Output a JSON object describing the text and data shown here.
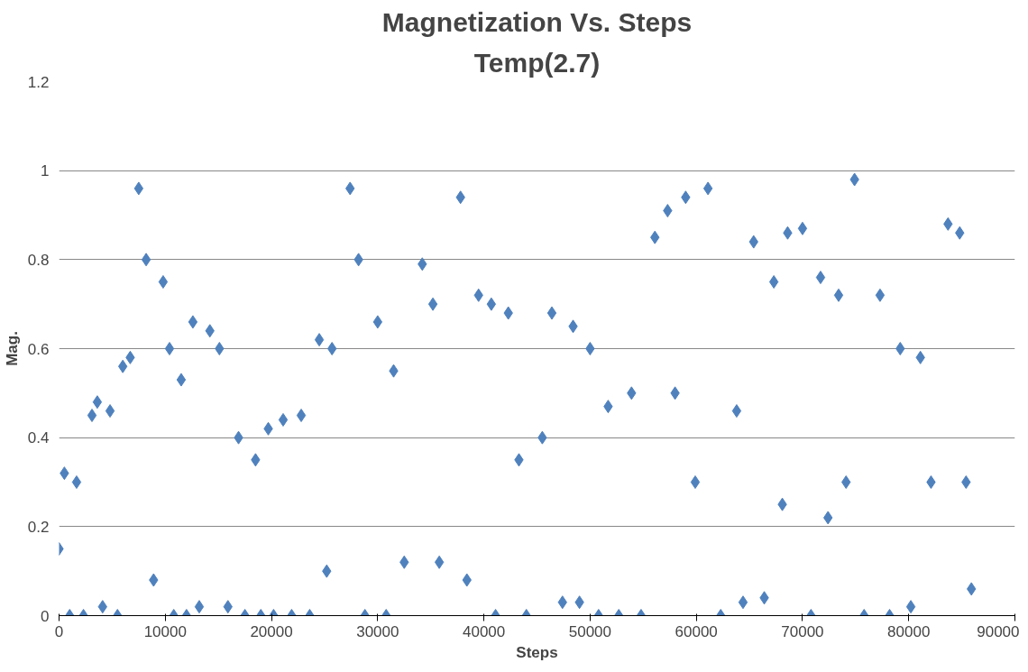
{
  "chart_data": {
    "type": "scatter",
    "title": "Magnetization Vs. Steps",
    "subtitle": "Temp(2.7)",
    "xlabel": "Steps",
    "ylabel": "Mag.",
    "x": [
      0,
      500,
      1000,
      1650,
      2300,
      3100,
      3600,
      4100,
      4800,
      5500,
      6000,
      6700,
      7500,
      8200,
      8900,
      9800,
      10400,
      10800,
      11500,
      12000,
      12600,
      13200,
      14200,
      15100,
      15900,
      16900,
      17500,
      18500,
      19000,
      19700,
      20200,
      21100,
      21900,
      22800,
      23600,
      24500,
      25200,
      25700,
      27400,
      28200,
      28800,
      30000,
      30800,
      31500,
      32500,
      34200,
      35200,
      35800,
      37800,
      38400,
      39500,
      40700,
      41100,
      42300,
      43300,
      44000,
      45500,
      46400,
      47400,
      48400,
      49000,
      50000,
      50800,
      51700,
      52700,
      53900,
      54800,
      56100,
      57300,
      58000,
      59000,
      59900,
      61100,
      62300,
      63800,
      64400,
      65400,
      66400,
      67300,
      68100,
      68600,
      70000,
      70800,
      71700,
      72400,
      73400,
      74100,
      74900,
      75800,
      77300,
      78200,
      79200,
      80200,
      81100,
      82100,
      83700,
      84800,
      85400,
      85900
    ],
    "values": [
      0.15,
      0.32,
      0,
      0.3,
      0,
      0.45,
      0.48,
      0.02,
      0.46,
      0,
      0.56,
      0.58,
      0.96,
      0.8,
      0.08,
      0.75,
      0.6,
      0,
      0.53,
      0,
      0.66,
      0.02,
      0.64,
      0.6,
      0.02,
      0.4,
      0,
      0.35,
      0,
      0.42,
      0,
      0.44,
      0,
      0.45,
      0,
      0.62,
      0.1,
      0.6,
      0.96,
      0.8,
      0,
      0.66,
      0,
      0.55,
      0.12,
      0.79,
      0.7,
      0.12,
      0.94,
      0.08,
      0.72,
      0.7,
      0,
      0.68,
      0.35,
      0,
      0.4,
      0.68,
      0.03,
      0.65,
      0.03,
      0.6,
      0,
      0.47,
      0,
      0.5,
      0,
      0.85,
      0.91,
      0.5,
      0.94,
      0.3,
      0.96,
      0,
      0.46,
      0.03,
      0.84,
      0.04,
      0.75,
      0.25,
      0.86,
      0.87,
      0,
      0.76,
      0.22,
      0.72,
      0.3,
      0.98,
      0,
      0.72,
      0,
      0.6,
      0.02,
      0.58,
      0.3,
      0.88,
      0.86,
      0.3,
      0.06
    ],
    "color": "#4f81bd",
    "marker": "diamond",
    "xlim": [
      0,
      90000
    ],
    "ylim": [
      0,
      1.2
    ],
    "xticks": [
      0,
      10000,
      20000,
      30000,
      40000,
      50000,
      60000,
      70000,
      80000,
      90000
    ],
    "yticks": [
      0,
      0.2,
      0.4,
      0.6,
      0.8,
      1,
      1.2
    ],
    "grid": "y"
  }
}
